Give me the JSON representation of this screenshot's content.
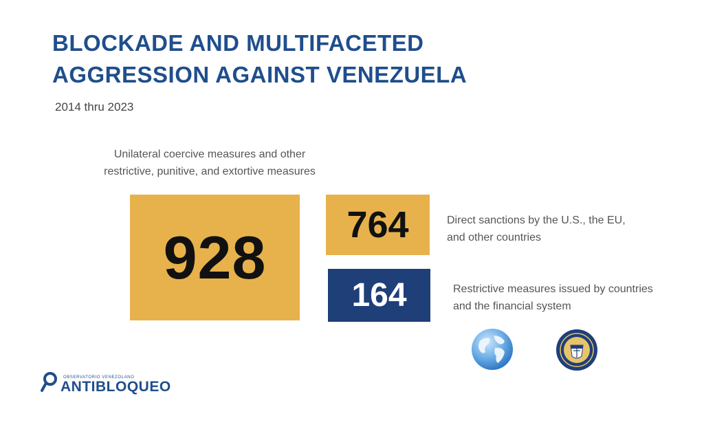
{
  "title": {
    "line1": "BLOCKADE AND MULTIFACETED",
    "line2": "AGGRESSION AGAINST VENEZUELA"
  },
  "subtitle": "2014 thru 2023",
  "main_measure": {
    "caption": "Unilateral coercive measures and other restrictive, punitive, and extortive measures",
    "value": "928",
    "color": "#e7b24c"
  },
  "breakdown": [
    {
      "value": "764",
      "caption": "Direct sanctions by the U.S., the EU, and other countries",
      "color": "#e7b24c"
    },
    {
      "value": "164",
      "caption": "Restrictive measures issued by countries and the financial system",
      "color": "#1f3f79"
    }
  ],
  "icons": {
    "globe": "globe-icon",
    "seal": "treasury-seal-icon"
  },
  "logo": {
    "small_text": "OBSERVATORIO VENEZOLANO",
    "main_text": "ANTIBLOQUEO",
    "color": "#1f4e8c"
  }
}
